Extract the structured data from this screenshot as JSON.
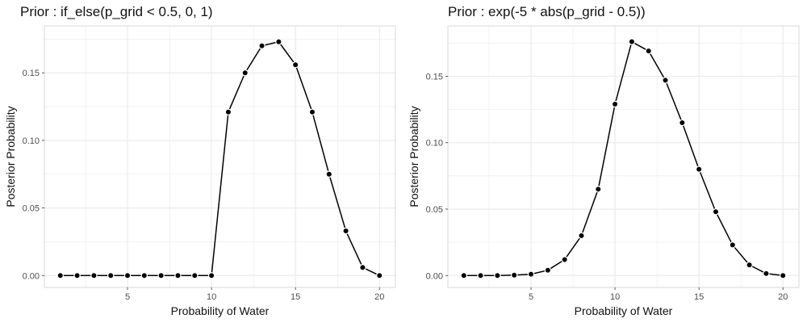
{
  "colors": {
    "grid": "#ebebeb",
    "line": "#000000",
    "point": "#000000",
    "point_stroke": "#ffffff",
    "tick_text": "#4d4d4d",
    "background": "#ffffff"
  },
  "chart_data": [
    {
      "type": "line",
      "title": "Prior : if_else(p_grid < 0.5, 0, 1)",
      "xlabel": "Probability of Water",
      "ylabel": "Posterior Probability",
      "xlim": [
        1,
        20
      ],
      "ylim": [
        0,
        0.176
      ],
      "x_ticks": [
        5,
        10,
        15,
        20
      ],
      "y_ticks": [
        0,
        0.05,
        0.1,
        0.15
      ],
      "x_tick_labels": [
        "5",
        "10",
        "15",
        "20"
      ],
      "y_tick_labels": [
        "0.00",
        "0.05",
        "0.10",
        "0.15"
      ],
      "grid": true,
      "markers": true,
      "x": [
        1,
        2,
        3,
        4,
        5,
        6,
        7,
        8,
        9,
        10,
        11,
        12,
        13,
        14,
        15,
        16,
        17,
        18,
        19,
        20
      ],
      "y": [
        0,
        0,
        0,
        0,
        0,
        0,
        0,
        0,
        0,
        0,
        0.121,
        0.15,
        0.17,
        0.173,
        0.156,
        0.121,
        0.075,
        0.033,
        0.006,
        0
      ]
    },
    {
      "type": "line",
      "title": "Prior : exp(-5 * abs(p_grid - 0.5))",
      "xlabel": "Probability of Water",
      "ylabel": "Posterior Probability",
      "xlim": [
        1,
        20
      ],
      "ylim": [
        0,
        0.179
      ],
      "x_ticks": [
        5,
        10,
        15,
        20
      ],
      "y_ticks": [
        0,
        0.05,
        0.1,
        0.15
      ],
      "x_tick_labels": [
        "5",
        "10",
        "15",
        "20"
      ],
      "y_tick_labels": [
        "0.00",
        "0.05",
        "0.10",
        "0.15"
      ],
      "grid": true,
      "markers": true,
      "x": [
        1,
        2,
        3,
        4,
        5,
        6,
        7,
        8,
        9,
        10,
        11,
        12,
        13,
        14,
        15,
        16,
        17,
        18,
        19,
        20
      ],
      "y": [
        0,
        0,
        0,
        0.0003,
        0.001,
        0.004,
        0.012,
        0.03,
        0.065,
        0.129,
        0.176,
        0.169,
        0.147,
        0.115,
        0.08,
        0.048,
        0.023,
        0.008,
        0.0015,
        0
      ]
    }
  ]
}
